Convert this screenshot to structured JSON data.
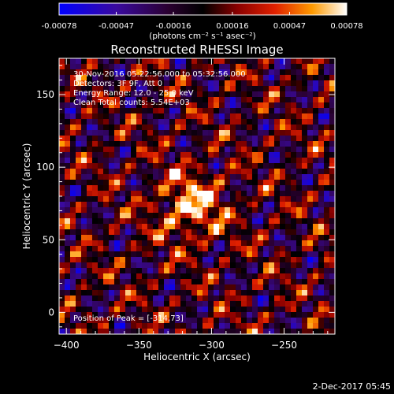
{
  "colorbar": {
    "tick_labels": [
      "-0.00078",
      "-0.00047",
      "-0.00016",
      "0.00016",
      "0.00047",
      "0.00078"
    ],
    "tick_values": [
      -0.00078,
      -0.00047,
      -0.00016,
      0.00016,
      0.00047,
      0.00078
    ],
    "range": [
      -0.00078,
      0.00078
    ],
    "unit_label": "(photons cm⁻² s⁻¹ asec⁻²)"
  },
  "chart_data": {
    "type": "heatmap",
    "title": "Reconstructed RHESSI Image",
    "xlabel": "Heliocentric X (arcsec)",
    "ylabel": "Heliocentric Y (arcsec)",
    "xlim": [
      -405,
      -215
    ],
    "ylim": [
      -15,
      175
    ],
    "x_ticks": [
      -400,
      -350,
      -300,
      -250
    ],
    "x_tick_labels": [
      "−400",
      "−350",
      "−300",
      "−250"
    ],
    "y_ticks": [
      0,
      50,
      100,
      150
    ],
    "y_tick_labels": [
      "0",
      "50",
      "100",
      "150"
    ],
    "colormap": "red-temperature with blue-purple negative end",
    "peak_position": [
      -314,
      73
    ],
    "annotations": [
      "30-Nov-2016 05:22:56.000 to 05:32:56.000",
      "Detectors: 3F 9F, Att 0",
      "Energy Range: 12.0 - 25.0 keV",
      "Clean    Total counts: 5.54E+03"
    ],
    "peak_label": "Position of Peak = [-314,73]"
  },
  "footer": {
    "date": "2-Dec-2017 05:45"
  }
}
